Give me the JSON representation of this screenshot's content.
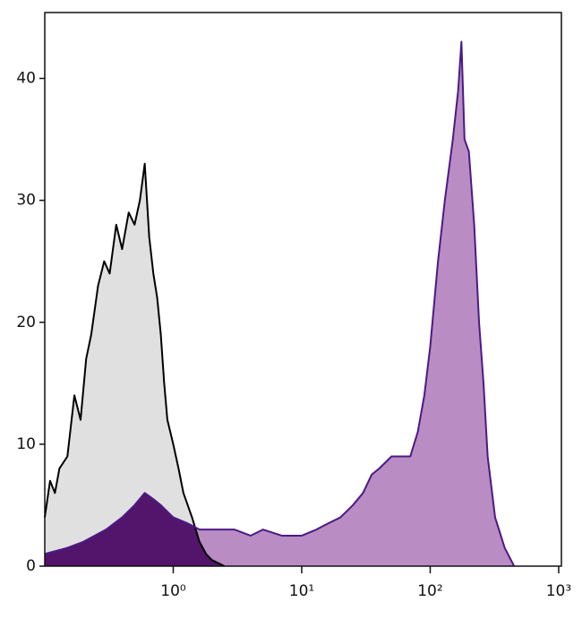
{
  "chart_data": {
    "type": "area",
    "xscale": "log",
    "xlim": [
      0.1,
      1050
    ],
    "ylim": [
      0,
      45.4
    ],
    "xticks": [
      {
        "value": 1,
        "label": "10⁰"
      },
      {
        "value": 10,
        "label": "10¹"
      },
      {
        "value": 100,
        "label": "10²"
      },
      {
        "value": 1000,
        "label": "10³"
      }
    ],
    "yticks": [
      0,
      10,
      20,
      30,
      40
    ],
    "series": [
      {
        "color": "#e0e0e0",
        "line_color": "#000000",
        "x": [
          0.1,
          0.11,
          0.12,
          0.13,
          0.15,
          0.17,
          0.19,
          0.21,
          0.23,
          0.26,
          0.29,
          0.32,
          0.36,
          0.4,
          0.45,
          0.5,
          0.55,
          0.6,
          0.65,
          0.7,
          0.75,
          0.8,
          0.85,
          0.9,
          1.0,
          1.1,
          1.2,
          1.4,
          1.6,
          1.8,
          2.0,
          2.5
        ],
        "values": [
          4,
          7,
          6,
          8,
          9,
          14,
          12,
          17,
          19,
          23,
          25,
          24,
          28,
          26,
          29,
          28,
          30,
          33,
          27,
          24,
          22,
          19,
          15,
          12,
          10,
          8,
          6,
          4,
          2,
          1,
          0.5,
          0
        ]
      },
      {
        "color": "#b98cc3",
        "line_color": "#4b1a85",
        "overlap_color": "#53146b",
        "x": [
          0.1,
          0.15,
          0.2,
          0.3,
          0.4,
          0.5,
          0.6,
          0.7,
          0.8,
          1.0,
          1.3,
          1.6,
          2,
          3,
          4,
          5,
          7,
          10,
          13,
          16,
          20,
          25,
          30,
          35,
          40,
          50,
          60,
          70,
          80,
          90,
          100,
          115,
          130,
          150,
          165,
          175,
          185,
          200,
          220,
          240,
          260,
          280,
          320,
          380,
          450
        ],
        "values": [
          1,
          1.5,
          2,
          3,
          4,
          5,
          6,
          5.5,
          5,
          4,
          3.5,
          3,
          3,
          3,
          2.5,
          3,
          2.5,
          2.5,
          3,
          3.5,
          4,
          5,
          6,
          7.5,
          8,
          9,
          9,
          9,
          11,
          14,
          18,
          25,
          30,
          35,
          39,
          43,
          35,
          34,
          28,
          20,
          15,
          9,
          4,
          1.5,
          0
        ]
      }
    ]
  }
}
